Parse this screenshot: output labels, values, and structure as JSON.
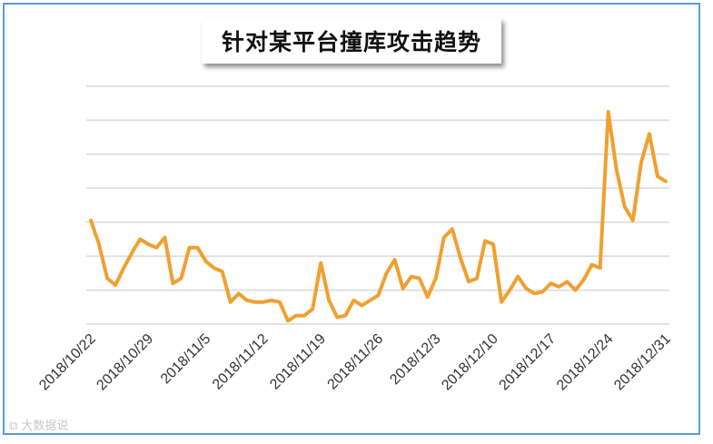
{
  "chart_data": {
    "type": "line",
    "title": "针对某平台撞库攻击趋势",
    "xlabel": "",
    "ylabel": "",
    "x_tick_labels": [
      "2018/10/22",
      "2018/10/29",
      "2018/11/5",
      "2018/11/12",
      "2018/11/19",
      "2018/11/26",
      "2018/12/3",
      "2018/12/10",
      "2018/12/17",
      "2018/12/24",
      "2018/12/31"
    ],
    "ylim": [
      0,
      7
    ],
    "y_gridlines": [
      0,
      1,
      2,
      3,
      4,
      5,
      6,
      7
    ],
    "y_tick_labels_shown": false,
    "grid": true,
    "legend": "none",
    "series": [
      {
        "color": "#f0a030",
        "values": [
          3.05,
          2.35,
          1.35,
          1.15,
          1.65,
          2.1,
          2.5,
          2.35,
          2.25,
          2.55,
          1.2,
          1.35,
          2.25,
          2.25,
          1.85,
          1.65,
          1.55,
          0.65,
          0.9,
          0.7,
          0.65,
          0.65,
          0.7,
          0.65,
          0.1,
          0.25,
          0.25,
          0.45,
          1.8,
          0.7,
          0.2,
          0.25,
          0.7,
          0.55,
          0.7,
          0.85,
          1.5,
          1.9,
          1.05,
          1.4,
          1.35,
          0.8,
          1.35,
          2.55,
          2.8,
          1.95,
          1.25,
          1.35,
          2.45,
          2.35,
          0.65,
          1.0,
          1.4,
          1.05,
          0.9,
          0.95,
          1.2,
          1.1,
          1.25,
          1.0,
          1.3,
          1.75,
          1.65,
          6.25,
          4.55,
          3.45,
          3.05,
          4.75,
          5.6,
          4.35,
          4.2
        ]
      }
    ]
  },
  "watermark": "大数据说"
}
